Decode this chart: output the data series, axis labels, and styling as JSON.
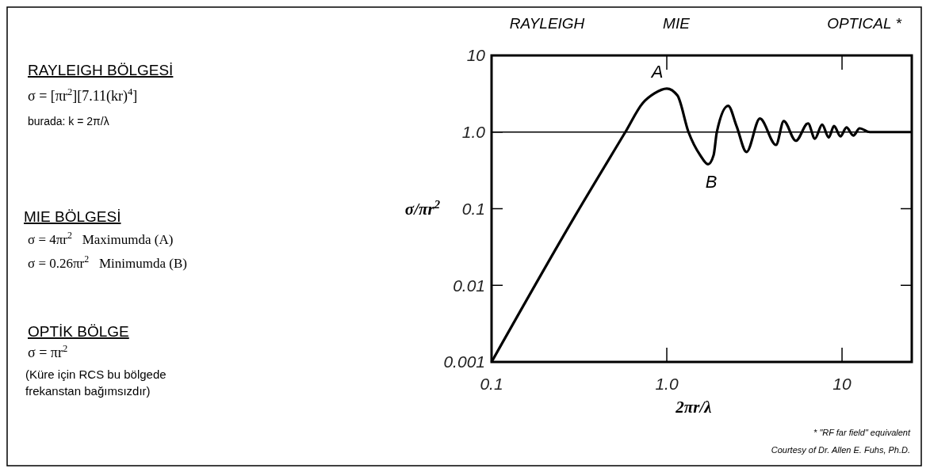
{
  "chart_data": {
    "type": "line",
    "xlabel": "2πr/λ",
    "ylabel": "σ/πr$^{2}$",
    "log": "xy",
    "xlim": [
      0.1,
      25
    ],
    "ylim": [
      0.001,
      10
    ],
    "xticks": [
      0.1,
      {
        "value": 1,
        "label": "1.0"
      },
      10
    ],
    "yticks": [
      0.001,
      0.01,
      0.1,
      {
        "value": 1,
        "label": "1.0"
      },
      10
    ],
    "x": [
      0.1,
      0.3,
      0.58,
      0.73,
      0.85,
      1.0,
      1.15,
      1.33,
      1.55,
      1.72,
      1.85,
      1.93,
      2.24,
      2.5,
      2.85,
      3.4,
      4.2,
      4.65,
      5.45,
      6.4,
      7.0,
      7.7,
      8.4,
      9.0,
      9.8,
      10.6,
      11.6,
      12.6,
      14.4,
      25
    ],
    "series": [
      {
        "color": "#000000",
        "values": [
          0.001,
          0.081,
          1.0,
          2.4,
          3.2,
          3.7,
          3.0,
          1.0,
          0.5,
          0.38,
          0.5,
          1.0,
          2.2,
          1.2,
          0.55,
          1.5,
          0.68,
          1.39,
          0.77,
          1.3,
          0.82,
          1.25,
          0.85,
          1.2,
          0.88,
          1.15,
          0.9,
          1.12,
          1.0,
          1.0
        ]
      }
    ],
    "ref_lines": [
      {
        "axis": "y",
        "value": 1
      }
    ],
    "annotations": [
      "RAYLEIGH BÖLGESİ",
      "σ = [πr$^{2}$][7.11(kr)$^{4}$]",
      "burada: k = 2π/λ",
      "MIE BÖLGESİ",
      "σ = 4πr$^{2}$   Maximumda (A)",
      "σ = 0.26πr$^{2}$   Minimumda (B)",
      "OPTİK BÖLGE",
      "σ = πr$^{2}$",
      "(Küre için RCS bu bölgede",
      "frekanstan bağımsızdır)",
      "RAYLEIGH",
      "MIE",
      "OPTICAL *",
      {
        "text": "A",
        "x": 1.0,
        "y": 3.7
      },
      {
        "text": "B",
        "x": 1.72,
        "y": 0.38
      },
      "* \"RF far field\" equivalent",
      "Courtesy of Dr. Allen E. Fuhs, Ph.D."
    ]
  }
}
